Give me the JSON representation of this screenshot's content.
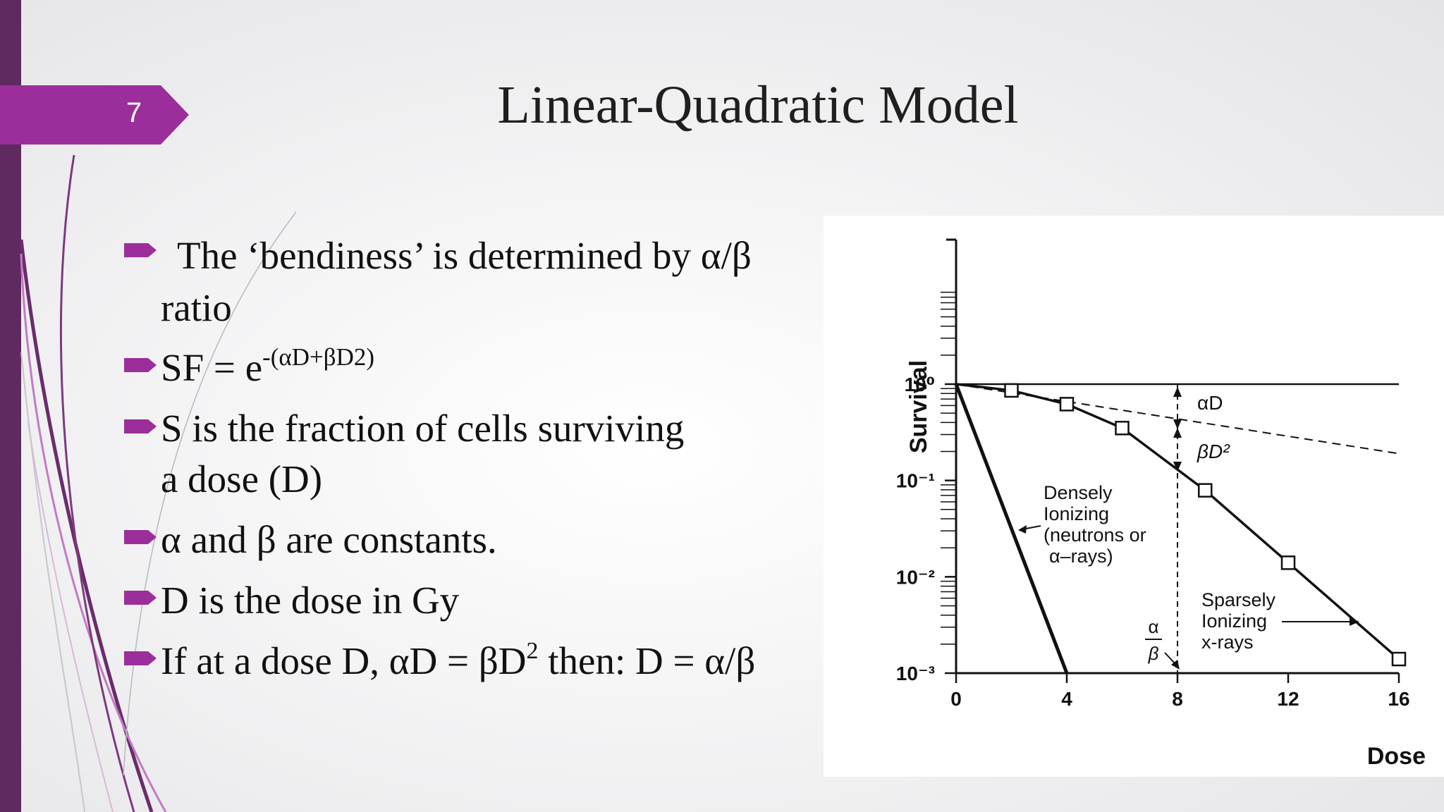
{
  "slide": {
    "number": "7",
    "title": "Linear-Quadratic Model",
    "accent_color": "#9b2e9a",
    "sidebar_color": "#5e2a5f"
  },
  "bullets": [
    {
      "line1": "The ‘bendiness’ is determined by α/β",
      "line2": "ratio"
    },
    {
      "base": "SF = e",
      "sup": "-(αD+βD2)"
    },
    {
      "line1": "S is the fraction of cells surviving",
      "line2": "a dose (D)"
    },
    {
      "text": "α and β are constants."
    },
    {
      "text": "D is the dose in Gy"
    },
    {
      "before": "If at a dose D, αD = βD",
      "sup": "2",
      "after": " then: D = α/β"
    }
  ],
  "chart_data": {
    "type": "line",
    "xlabel": "Dose",
    "ylabel": "Survival",
    "x_ticks": [
      "0",
      "4",
      "8",
      "12",
      "16"
    ],
    "y_ticks": [
      "10⁰",
      "10⁻¹",
      "10⁻²",
      "10⁻³"
    ],
    "xlim": [
      0,
      16
    ],
    "ylim_log10": [
      -3,
      1
    ],
    "log_scale_y": true,
    "series": [
      {
        "label_lines": [
          "Densely",
          "Ionizing",
          "(neutrons or",
          "α–rays)"
        ],
        "style": "thick",
        "x": [
          0,
          4
        ],
        "y": [
          1,
          0.001
        ]
      },
      {
        "label_lines": [
          "Sparsely",
          "Ionizing",
          "x-rays"
        ],
        "style": "solid",
        "marker": "square",
        "x": [
          0,
          2,
          4,
          6,
          9,
          12,
          16
        ],
        "y": [
          1,
          0.86,
          0.62,
          0.35,
          0.079,
          0.014,
          0.0014
        ]
      }
    ],
    "reference_lines": [
      {
        "label": "αD",
        "style": "dashed",
        "x": [
          0,
          16
        ],
        "y": [
          1,
          0.19
        ]
      }
    ],
    "annotations": {
      "alpha_d": "αD",
      "beta_d2": "βD²",
      "alpha_over_beta_num": "α",
      "alpha_over_beta_den": "β",
      "alpha_over_beta_x": 8
    }
  }
}
